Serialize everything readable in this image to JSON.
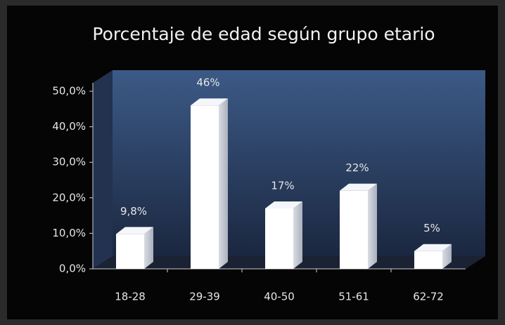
{
  "chart_data": {
    "type": "bar",
    "title": "Porcentaje de edad según grupo etario",
    "categories": [
      "18-28",
      "29-39",
      "40-50",
      "51-61",
      "62-72"
    ],
    "values": [
      9.8,
      46,
      17,
      22,
      5
    ],
    "value_labels": [
      "9,8%",
      "46%",
      "17%",
      "22%",
      "5%"
    ],
    "color": "#ffffff",
    "ylim": [
      0,
      50
    ],
    "yticks": [
      {
        "value": 0,
        "label": "0,0%"
      },
      {
        "value": 10,
        "label": "10,0%"
      },
      {
        "value": 20,
        "label": "20,0%"
      },
      {
        "value": 30,
        "label": "30,0%"
      },
      {
        "value": 40,
        "label": "40,0%"
      },
      {
        "value": 50,
        "label": "50,0%"
      }
    ],
    "grid": false
  }
}
